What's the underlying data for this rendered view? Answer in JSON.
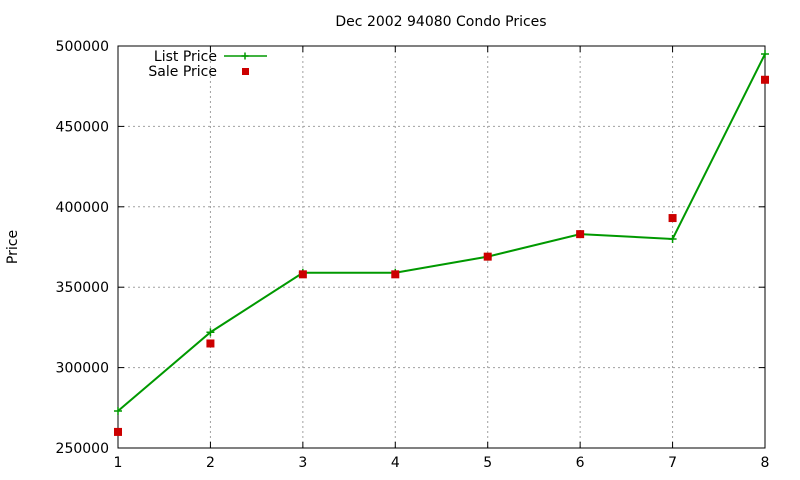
{
  "chart_data": {
    "type": "line",
    "title": "Dec 2002 94080 Condo Prices",
    "xlabel": "",
    "ylabel": "Price",
    "x": [
      1,
      2,
      3,
      4,
      5,
      6,
      7,
      8
    ],
    "xlim": [
      1,
      8
    ],
    "ylim": [
      250000,
      500000
    ],
    "xticks": [
      "1",
      "2",
      "3",
      "4",
      "5",
      "6",
      "7",
      "8"
    ],
    "yticks": [
      "250000",
      "300000",
      "350000",
      "400000",
      "450000",
      "500000"
    ],
    "grid": true,
    "legend_position": "top-left",
    "series": [
      {
        "name": "List Price",
        "style": "line-with-plus-markers",
        "color": "#009900",
        "values": [
          273000,
          322000,
          359000,
          359000,
          369000,
          383000,
          380000,
          495000
        ]
      },
      {
        "name": "Sale Price",
        "style": "square-markers",
        "color": "#cc0000",
        "values": [
          260000,
          315000,
          358000,
          358000,
          369000,
          383000,
          393000,
          479000
        ]
      }
    ]
  }
}
